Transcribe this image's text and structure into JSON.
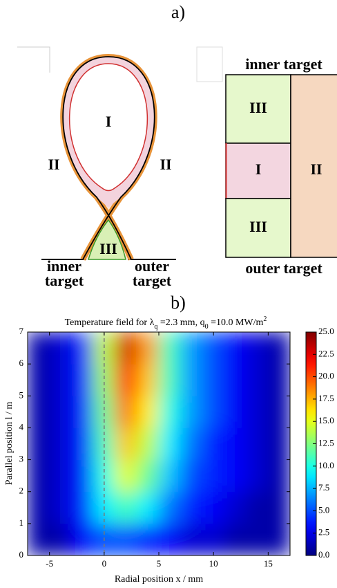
{
  "panel_a": {
    "label": "a)",
    "cross_section": {
      "regions": {
        "core": "I",
        "sol_left": "II",
        "sol_right": "II",
        "private": "III"
      },
      "inner_target": [
        "inner",
        "target"
      ],
      "outer_target": [
        "outer",
        "target"
      ]
    },
    "schematic": {
      "top": "inner target",
      "bottom": "outer target",
      "regions": {
        "upper": "III",
        "middle": "I",
        "lower": "III",
        "side": "II"
      }
    }
  },
  "panel_b": {
    "label": "b)"
  },
  "chart_data": {
    "type": "heatmap",
    "title": [
      "Temperature field for λ",
      "q",
      " =2.3 mm, q",
      "0",
      " =10.0 MW/m",
      "2"
    ],
    "x_label": "Radial position x / mm",
    "y_label": "Parallel position l / m",
    "xbins": [
      -7,
      -5,
      -3,
      -1,
      1,
      3,
      5,
      7,
      9,
      11,
      13,
      15,
      17
    ],
    "ybins": [
      0,
      1,
      2,
      3,
      4,
      5,
      6,
      7
    ],
    "values": [
      [
        1,
        1,
        3,
        5,
        5,
        4,
        3,
        2,
        2,
        1,
        1,
        1
      ],
      [
        1,
        2,
        4,
        9,
        11,
        9,
        6,
        4,
        3,
        2,
        1,
        1
      ],
      [
        1,
        2,
        4,
        10,
        15,
        12,
        8,
        5,
        4,
        3,
        2,
        1
      ],
      [
        1,
        2,
        4,
        11,
        17,
        14,
        9,
        6,
        4,
        3,
        2,
        1
      ],
      [
        1,
        2,
        4,
        12,
        19,
        16,
        10,
        7,
        5,
        3,
        2,
        1
      ],
      [
        1,
        2,
        4,
        13,
        21,
        17,
        11,
        7,
        5,
        3,
        2,
        1
      ],
      [
        1,
        2,
        4,
        14,
        23,
        18,
        11,
        7,
        5,
        3,
        2,
        1
      ]
    ],
    "xlim": [
      -7,
      17
    ],
    "xticks": [
      -5,
      0,
      5,
      10,
      15
    ],
    "ylim": [
      0,
      7
    ],
    "yticks": [
      0,
      1,
      2,
      3,
      4,
      5,
      6,
      7
    ],
    "clim": [
      0,
      25
    ],
    "colormap": "jet",
    "cticks": [
      {
        "value": 0,
        "label": "0.0"
      },
      {
        "value": 2.5,
        "label": "2.5"
      },
      {
        "value": 5,
        "label": "5.0"
      },
      {
        "value": 7.5,
        "label": "7.5"
      },
      {
        "value": 10,
        "label": "10.0"
      },
      {
        "value": 12.5,
        "label": "12.5"
      },
      {
        "value": 15,
        "label": "15.0"
      },
      {
        "value": 17.5,
        "label": "17.5"
      },
      {
        "value": 20,
        "label": "20.0"
      },
      {
        "value": 22.5,
        "label": "22.5"
      },
      {
        "value": 25,
        "label": "25.0"
      }
    ],
    "reference_line_x": 0
  }
}
